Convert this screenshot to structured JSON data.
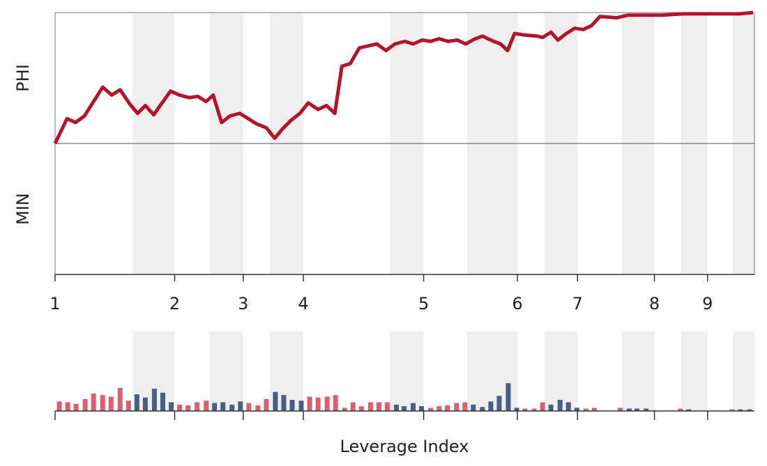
{
  "chart_data": [
    {
      "type": "line",
      "ylabel_top": "PHI",
      "ylabel_bottom": "MIN",
      "color": "#b5132b",
      "xlim": [
        0,
        100
      ],
      "ylim": [
        -1,
        1
      ],
      "zero_line": true,
      "xticks": [
        {
          "value": 0,
          "label": "1"
        },
        {
          "value": 17.1,
          "label": "2"
        },
        {
          "value": 26.9,
          "label": "3"
        },
        {
          "value": 35.5,
          "label": "4"
        },
        {
          "value": 52.7,
          "label": "5"
        },
        {
          "value": 66.1,
          "label": "6"
        },
        {
          "value": 74.7,
          "label": "7"
        },
        {
          "value": 85.7,
          "label": "8"
        },
        {
          "value": 93.3,
          "label": "9"
        }
      ],
      "bands": [
        [
          11.1,
          17.1
        ],
        [
          22.1,
          26.9
        ],
        [
          30.7,
          35.5
        ],
        [
          47.9,
          52.7
        ],
        [
          58.9,
          66.1
        ],
        [
          70.0,
          74.7
        ],
        [
          81.0,
          85.7
        ],
        [
          89.5,
          93.3
        ],
        [
          96.9,
          100
        ]
      ],
      "band_color": "#efefef",
      "x": [
        0,
        1.7,
        2.9,
        4.2,
        6.8,
        8.1,
        9.3,
        10.7,
        11.8,
        12.9,
        14.1,
        16.5,
        17.8,
        19.2,
        20.4,
        21.6,
        22.6,
        23.8,
        25.0,
        26.4,
        27.6,
        28.8,
        30.2,
        31.4,
        32.5,
        33.8,
        35.0,
        36.2,
        37.6,
        38.8,
        40.0,
        41.0,
        42.2,
        43.5,
        46.0,
        47.3,
        48.6,
        50.0,
        51.2,
        52.5,
        53.7,
        54.9,
        56.2,
        57.5,
        58.7,
        60.1,
        61.1,
        62.7,
        63.7,
        64.7,
        65.7,
        66.9,
        68.9,
        69.7,
        70.9,
        71.9,
        73.1,
        74.3,
        75.5,
        76.7,
        77.9,
        80.3,
        81.9,
        83.8,
        86.8,
        89.8,
        91.8,
        94.8,
        97.8,
        99.8
      ],
      "values": [
        0,
        0.19,
        0.16,
        0.21,
        0.43,
        0.37,
        0.41,
        0.3,
        0.23,
        0.29,
        0.22,
        0.4,
        0.37,
        0.35,
        0.36,
        0.32,
        0.37,
        0.16,
        0.21,
        0.23,
        0.19,
        0.15,
        0.12,
        0.04,
        0.11,
        0.18,
        0.23,
        0.31,
        0.26,
        0.29,
        0.23,
        0.59,
        0.61,
        0.73,
        0.76,
        0.71,
        0.76,
        0.78,
        0.76,
        0.79,
        0.78,
        0.8,
        0.78,
        0.79,
        0.76,
        0.8,
        0.82,
        0.78,
        0.76,
        0.71,
        0.84,
        0.83,
        0.82,
        0.81,
        0.85,
        0.79,
        0.84,
        0.88,
        0.87,
        0.9,
        0.97,
        0.96,
        0.98,
        0.98,
        0.98,
        0.99,
        0.99,
        0.99,
        0.99,
        1.0
      ]
    },
    {
      "type": "bar",
      "xlabel": "Leverage Index",
      "xlim": [
        0,
        100
      ],
      "ylim": [
        0,
        100
      ],
      "xticks": [
        0,
        17.1,
        26.9,
        35.5,
        52.7,
        66.1,
        74.7,
        85.7,
        93.3
      ],
      "bands": [
        [
          11.1,
          17.1
        ],
        [
          22.1,
          26.9
        ],
        [
          30.7,
          35.5
        ],
        [
          47.9,
          52.7
        ],
        [
          58.9,
          66.1
        ],
        [
          70.0,
          74.7
        ],
        [
          81.0,
          85.7
        ],
        [
          89.5,
          93.3
        ],
        [
          96.9,
          100
        ]
      ],
      "band_color": "#efefef",
      "series": [
        {
          "color": "#d9606f",
          "x": [
            0.6,
            1.8,
            3.0,
            4.3,
            5.5,
            6.8,
            8.0,
            9.3,
            10.5,
            17.8,
            19.0,
            20.3,
            21.6,
            27.7,
            29.0,
            30.2,
            36.4,
            37.6,
            38.9,
            40.1,
            41.4,
            42.6,
            43.8,
            45.1,
            46.3,
            47.5,
            53.7,
            54.9,
            56.1,
            57.4,
            58.6,
            67.2,
            68.5,
            69.7,
            75.9,
            77.1,
            80.8,
            89.4,
            96.8
          ],
          "values": [
            12,
            11,
            9,
            15,
            22,
            20,
            18,
            29,
            13,
            8,
            7,
            11,
            13,
            10,
            7,
            15,
            18,
            17,
            18,
            20,
            4,
            11,
            6,
            11,
            11,
            11,
            4,
            6,
            7,
            10,
            11,
            3,
            3,
            11,
            3,
            4,
            4,
            3,
            2
          ]
        },
        {
          "color": "#4a5f86",
          "x": [
            11.7,
            12.9,
            14.2,
            15.4,
            16.6,
            22.8,
            24.0,
            25.3,
            26.5,
            31.5,
            32.7,
            33.9,
            35.2,
            48.8,
            49.9,
            51.2,
            52.4,
            59.8,
            61.1,
            62.3,
            63.5,
            64.8,
            66.0,
            70.9,
            72.2,
            73.4,
            74.6,
            82.1,
            83.2,
            84.5,
            90.6,
            98.0,
            99.3
          ],
          "values": [
            21,
            17,
            28,
            23,
            11,
            10,
            11,
            8,
            12,
            24,
            20,
            14,
            13,
            8,
            6,
            10,
            6,
            8,
            5,
            12,
            19,
            35,
            4,
            8,
            14,
            11,
            4,
            3,
            3,
            3,
            2,
            2,
            2
          ]
        }
      ]
    }
  ]
}
